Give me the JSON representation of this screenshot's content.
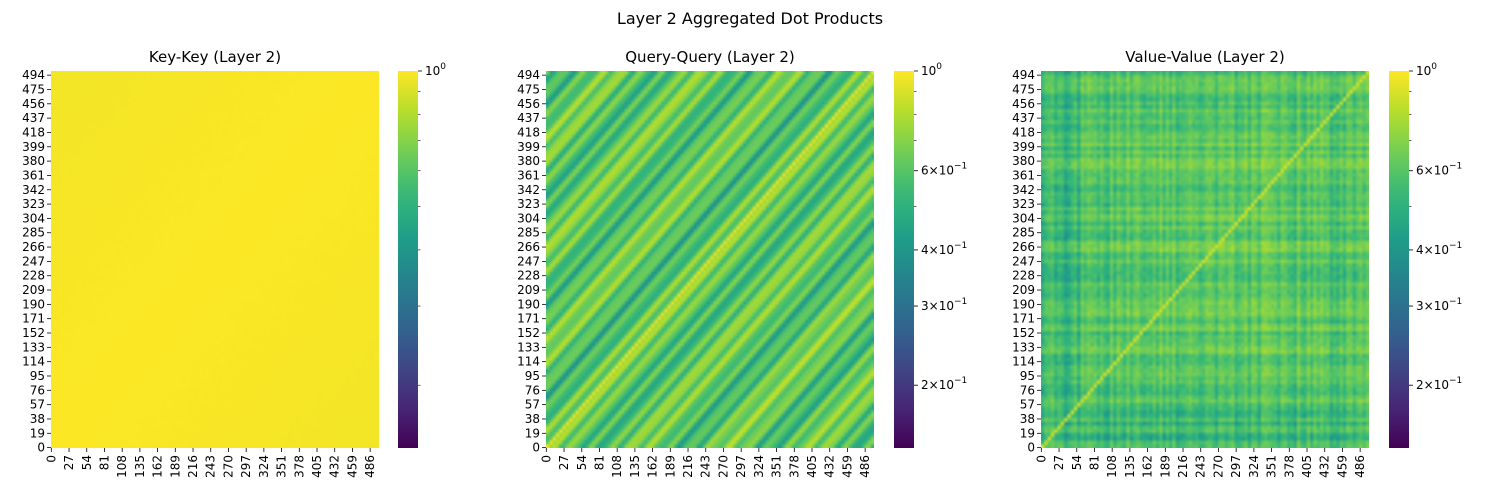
{
  "figure": {
    "suptitle": "Layer 2 Aggregated Dot Products"
  },
  "chart_data": [
    {
      "type": "heatmap",
      "title": "Key-Key (Layer 2)",
      "matrix_size": 500,
      "pattern": "uniform-high",
      "approx_value_range": [
        0.92,
        1.0
      ],
      "x_ticks": [
        "0",
        "27",
        "54",
        "81",
        "108",
        "135",
        "162",
        "189",
        "216",
        "243",
        "270",
        "297",
        "324",
        "351",
        "378",
        "405",
        "432",
        "459",
        "486"
      ],
      "y_ticks": [
        "0",
        "19",
        "38",
        "57",
        "76",
        "95",
        "114",
        "133",
        "152",
        "171",
        "190",
        "209",
        "228",
        "247",
        "266",
        "285",
        "304",
        "323",
        "342",
        "361",
        "380",
        "399",
        "418",
        "437",
        "456",
        "475",
        "494"
      ],
      "colorbar": {
        "scale": "log",
        "cmap": "viridis",
        "range": [
          0.145,
          1.0
        ],
        "tick_values": [
          1.0
        ],
        "tick_labels": [
          {
            "base": "10",
            "exp": "0"
          }
        ]
      }
    },
    {
      "type": "heatmap",
      "title": "Query-Query (Layer 2)",
      "matrix_size": 500,
      "pattern": "diagonal-bands",
      "approx_value_range": [
        0.33,
        1.0
      ],
      "x_ticks": [
        "0",
        "27",
        "54",
        "81",
        "108",
        "135",
        "162",
        "189",
        "216",
        "243",
        "270",
        "297",
        "324",
        "351",
        "378",
        "405",
        "432",
        "459",
        "486"
      ],
      "y_ticks": [
        "0",
        "19",
        "38",
        "57",
        "76",
        "95",
        "114",
        "133",
        "152",
        "171",
        "190",
        "209",
        "228",
        "247",
        "266",
        "285",
        "304",
        "323",
        "342",
        "361",
        "380",
        "399",
        "418",
        "437",
        "456",
        "475",
        "494"
      ],
      "colorbar": {
        "scale": "log",
        "cmap": "viridis",
        "range": [
          0.145,
          1.0
        ],
        "tick_values": [
          1.0,
          0.6,
          0.4,
          0.3,
          0.2
        ],
        "tick_labels": [
          {
            "base": "10",
            "exp": "0"
          },
          {
            "coef": "6",
            "base": "10",
            "exp": "−1"
          },
          {
            "coef": "4",
            "base": "10",
            "exp": "−1"
          },
          {
            "coef": "3",
            "base": "10",
            "exp": "−1"
          },
          {
            "coef": "2",
            "base": "10",
            "exp": "−1"
          }
        ]
      }
    },
    {
      "type": "heatmap",
      "title": "Value-Value (Layer 2)",
      "matrix_size": 500,
      "pattern": "noisy-grid-diagonal",
      "approx_value_range": [
        0.35,
        1.0
      ],
      "x_ticks": [
        "0",
        "27",
        "54",
        "81",
        "108",
        "135",
        "162",
        "189",
        "216",
        "243",
        "270",
        "297",
        "324",
        "351",
        "378",
        "405",
        "432",
        "459",
        "486"
      ],
      "y_ticks": [
        "0",
        "19",
        "38",
        "57",
        "76",
        "95",
        "114",
        "133",
        "152",
        "171",
        "190",
        "209",
        "228",
        "247",
        "266",
        "285",
        "304",
        "323",
        "342",
        "361",
        "380",
        "399",
        "418",
        "437",
        "456",
        "475",
        "494"
      ],
      "colorbar": {
        "scale": "log",
        "cmap": "viridis",
        "range": [
          0.145,
          1.0
        ],
        "tick_values": [
          1.0,
          0.6,
          0.4,
          0.3,
          0.2
        ],
        "tick_labels": [
          {
            "base": "10",
            "exp": "0"
          },
          {
            "coef": "6",
            "base": "10",
            "exp": "−1"
          },
          {
            "coef": "4",
            "base": "10",
            "exp": "−1"
          },
          {
            "coef": "3",
            "base": "10",
            "exp": "−1"
          },
          {
            "coef": "2",
            "base": "10",
            "exp": "−1"
          }
        ]
      }
    }
  ]
}
